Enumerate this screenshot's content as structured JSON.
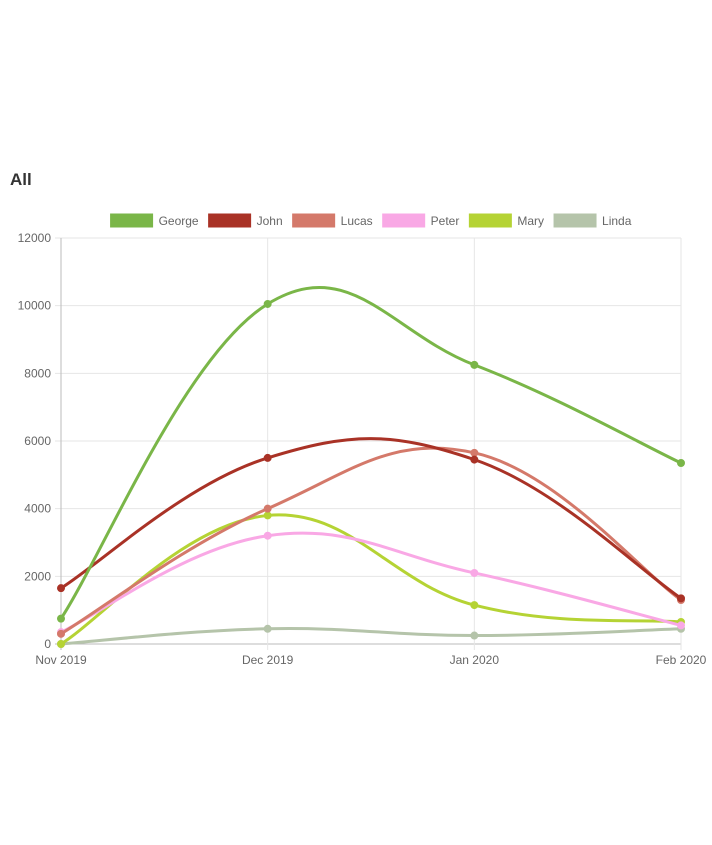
{
  "chart_data": {
    "type": "line",
    "title": "All",
    "categories": [
      "Nov 2019",
      "Dec 2019",
      "Jan 2020",
      "Feb 2020"
    ],
    "ylim": [
      0,
      12000
    ],
    "yticks": [
      0,
      2000,
      4000,
      6000,
      8000,
      10000,
      12000
    ],
    "grid": true,
    "legend_position": "top",
    "series": [
      {
        "name": "George",
        "color": "#7ab648",
        "values": [
          750,
          10050,
          8250,
          5350
        ]
      },
      {
        "name": "John",
        "color": "#a93226",
        "values": [
          1650,
          5500,
          5450,
          1350
        ]
      },
      {
        "name": "Lucas",
        "color": "#d4796a",
        "values": [
          300,
          4000,
          5650,
          1300
        ]
      },
      {
        "name": "Peter",
        "color": "#f9a8e5",
        "values": [
          350,
          3200,
          2100,
          550
        ]
      },
      {
        "name": "Mary",
        "color": "#b5d334",
        "values": [
          0,
          3800,
          1150,
          650
        ]
      },
      {
        "name": "Linda",
        "color": "#b5c4aa",
        "values": [
          0,
          450,
          250,
          450
        ]
      }
    ]
  }
}
